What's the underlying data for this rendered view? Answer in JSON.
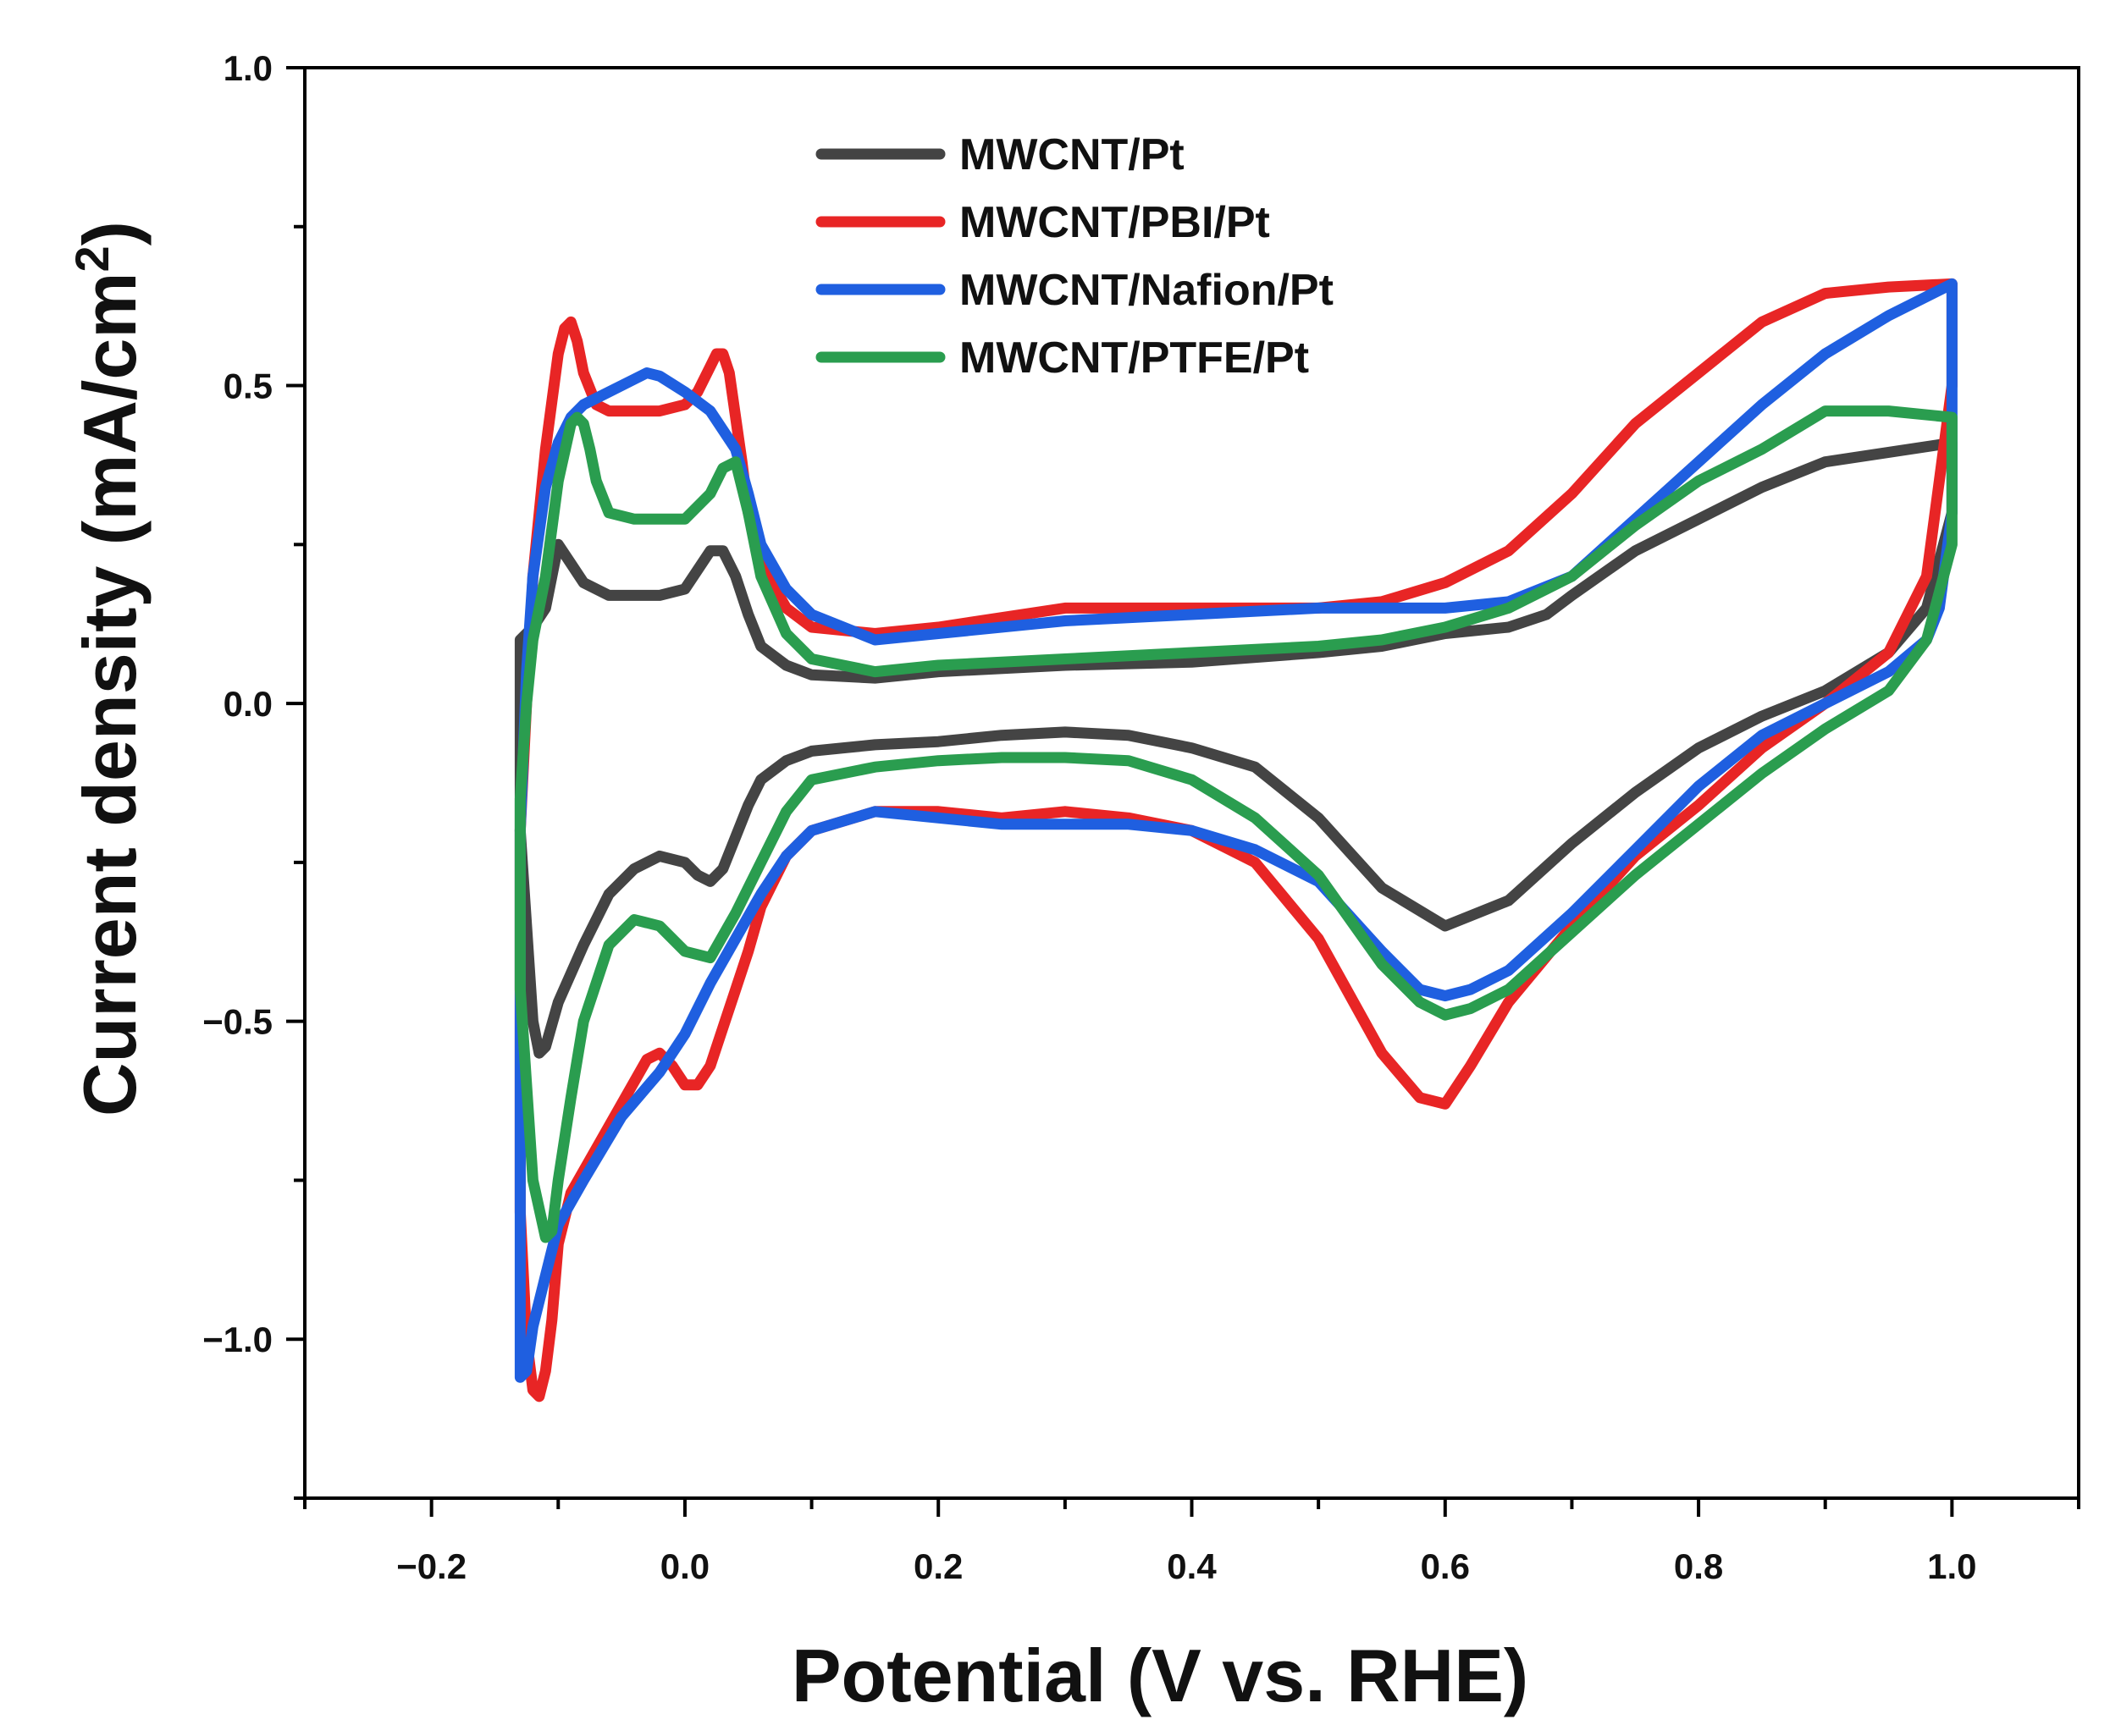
{
  "chart_data": {
    "type": "line",
    "title": "",
    "xlabel": "Potential (V vs. RHE)",
    "ylabel_main": "Current density (mA/cm",
    "ylabel_sup": "2",
    "ylabel_close": ")",
    "xlim": [
      -0.3,
      1.1
    ],
    "ylim": [
      -1.25,
      1.0
    ],
    "x_ticks": [
      -0.2,
      0.0,
      0.2,
      0.4,
      0.6,
      0.8,
      1.0
    ],
    "x_tick_labels": [
      "−0.2",
      "0.0",
      "0.2",
      "0.4",
      "0.6",
      "0.8",
      "1.0"
    ],
    "y_ticks": [
      -1.0,
      -0.5,
      0.0,
      0.5,
      1.0
    ],
    "y_tick_labels": [
      "−1.0",
      "−0.5",
      "0.0",
      "0.5",
      "1.0"
    ],
    "legend_position": "top-center",
    "series": [
      {
        "name": "MWCNT/Pt",
        "color": "#444444",
        "x": [
          -0.11,
          -0.105,
          -0.1,
          -0.09,
          -0.08,
          -0.06,
          -0.04,
          -0.02,
          0.0,
          0.01,
          0.02,
          0.03,
          0.04,
          0.05,
          0.06,
          0.08,
          0.1,
          0.15,
          0.2,
          0.3,
          0.4,
          0.5,
          0.55,
          0.6,
          0.65,
          0.68,
          0.7,
          0.75,
          0.8,
          0.85,
          0.9,
          0.95,
          1.0,
          1.0,
          0.98,
          0.95,
          0.9,
          0.85,
          0.8,
          0.75,
          0.7,
          0.65,
          0.6,
          0.55,
          0.5,
          0.45,
          0.4,
          0.35,
          0.3,
          0.25,
          0.2,
          0.15,
          0.1,
          0.08,
          0.06,
          0.05,
          0.04,
          0.03,
          0.02,
          0.01,
          0.0,
          -0.02,
          -0.04,
          -0.06,
          -0.08,
          -0.1,
          -0.11,
          -0.115,
          -0.12,
          -0.125,
          -0.13,
          -0.13,
          -0.13,
          -0.13,
          -0.12,
          -0.11
        ],
        "y": [
          0.15,
          0.2,
          0.25,
          0.22,
          0.19,
          0.17,
          0.17,
          0.17,
          0.18,
          0.21,
          0.24,
          0.24,
          0.2,
          0.14,
          0.09,
          0.06,
          0.045,
          0.04,
          0.05,
          0.06,
          0.065,
          0.08,
          0.09,
          0.11,
          0.12,
          0.14,
          0.17,
          0.24,
          0.29,
          0.34,
          0.38,
          0.395,
          0.41,
          0.3,
          0.15,
          0.08,
          0.02,
          -0.02,
          -0.07,
          -0.14,
          -0.22,
          -0.31,
          -0.35,
          -0.29,
          -0.18,
          -0.1,
          -0.07,
          -0.05,
          -0.045,
          -0.05,
          -0.06,
          -0.065,
          -0.075,
          -0.09,
          -0.12,
          -0.16,
          -0.21,
          -0.26,
          -0.28,
          -0.27,
          -0.25,
          -0.24,
          -0.26,
          -0.3,
          -0.38,
          -0.47,
          -0.54,
          -0.55,
          -0.5,
          -0.35,
          -0.2,
          -0.05,
          0.05,
          0.1,
          0.12,
          0.15
        ]
      },
      {
        "name": "MWCNT/PBI/Pt",
        "color": "#e82525",
        "x": [
          -0.12,
          -0.11,
          -0.1,
          -0.095,
          -0.09,
          -0.085,
          -0.08,
          -0.07,
          -0.06,
          -0.04,
          -0.02,
          0.0,
          0.01,
          0.02,
          0.025,
          0.03,
          0.035,
          0.04,
          0.045,
          0.05,
          0.06,
          0.08,
          0.1,
          0.15,
          0.2,
          0.3,
          0.4,
          0.5,
          0.55,
          0.6,
          0.65,
          0.7,
          0.75,
          0.8,
          0.85,
          0.9,
          0.95,
          1.0,
          1.0,
          0.98,
          0.95,
          0.9,
          0.85,
          0.8,
          0.75,
          0.7,
          0.65,
          0.62,
          0.6,
          0.58,
          0.55,
          0.5,
          0.45,
          0.4,
          0.35,
          0.3,
          0.25,
          0.2,
          0.15,
          0.1,
          0.08,
          0.06,
          0.05,
          0.04,
          0.03,
          0.02,
          0.01,
          0.0,
          -0.01,
          -0.02,
          -0.03,
          -0.05,
          -0.07,
          -0.09,
          -0.1,
          -0.105,
          -0.11,
          -0.115,
          -0.12,
          -0.125,
          -0.13,
          -0.13,
          -0.13,
          -0.125,
          -0.12
        ],
        "y": [
          0.2,
          0.4,
          0.55,
          0.59,
          0.6,
          0.57,
          0.52,
          0.47,
          0.46,
          0.46,
          0.46,
          0.47,
          0.49,
          0.53,
          0.55,
          0.55,
          0.52,
          0.45,
          0.38,
          0.3,
          0.22,
          0.15,
          0.12,
          0.11,
          0.12,
          0.15,
          0.15,
          0.15,
          0.16,
          0.19,
          0.24,
          0.33,
          0.44,
          0.52,
          0.6,
          0.645,
          0.655,
          0.66,
          0.5,
          0.2,
          0.08,
          0.0,
          -0.07,
          -0.16,
          -0.24,
          -0.35,
          -0.47,
          -0.57,
          -0.63,
          -0.62,
          -0.55,
          -0.37,
          -0.25,
          -0.2,
          -0.18,
          -0.17,
          -0.18,
          -0.17,
          -0.17,
          -0.2,
          -0.24,
          -0.32,
          -0.39,
          -0.45,
          -0.51,
          -0.57,
          -0.6,
          -0.6,
          -0.57,
          -0.55,
          -0.56,
          -0.63,
          -0.7,
          -0.77,
          -0.85,
          -0.97,
          -1.05,
          -1.09,
          -1.08,
          -1.0,
          -0.8,
          -0.5,
          -0.2,
          0.0,
          0.2
        ]
      },
      {
        "name": "MWCNT/Nafion/Pt",
        "color": "#1f5fe0",
        "x": [
          -0.12,
          -0.11,
          -0.1,
          -0.09,
          -0.08,
          -0.06,
          -0.04,
          -0.03,
          -0.02,
          0.0,
          0.02,
          0.04,
          0.05,
          0.06,
          0.08,
          0.1,
          0.15,
          0.2,
          0.3,
          0.4,
          0.5,
          0.6,
          0.65,
          0.7,
          0.75,
          0.8,
          0.85,
          0.9,
          0.95,
          1.0,
          1.0,
          0.99,
          0.98,
          0.95,
          0.9,
          0.85,
          0.8,
          0.75,
          0.7,
          0.65,
          0.62,
          0.6,
          0.58,
          0.55,
          0.5,
          0.45,
          0.4,
          0.35,
          0.3,
          0.25,
          0.2,
          0.15,
          0.1,
          0.08,
          0.06,
          0.04,
          0.02,
          0.0,
          -0.02,
          -0.05,
          -0.08,
          -0.1,
          -0.11,
          -0.12,
          -0.125,
          -0.13,
          -0.13,
          -0.13,
          -0.125,
          -0.12
        ],
        "y": [
          0.2,
          0.34,
          0.41,
          0.45,
          0.47,
          0.49,
          0.51,
          0.52,
          0.515,
          0.49,
          0.46,
          0.4,
          0.33,
          0.25,
          0.18,
          0.14,
          0.1,
          0.11,
          0.13,
          0.14,
          0.15,
          0.15,
          0.16,
          0.2,
          0.29,
          0.38,
          0.47,
          0.55,
          0.61,
          0.66,
          0.3,
          0.15,
          0.1,
          0.05,
          0.0,
          -0.05,
          -0.13,
          -0.23,
          -0.33,
          -0.42,
          -0.45,
          -0.46,
          -0.45,
          -0.39,
          -0.28,
          -0.23,
          -0.2,
          -0.19,
          -0.19,
          -0.19,
          -0.18,
          -0.17,
          -0.2,
          -0.24,
          -0.3,
          -0.37,
          -0.44,
          -0.52,
          -0.58,
          -0.65,
          -0.75,
          -0.82,
          -0.9,
          -0.98,
          -1.05,
          -1.06,
          -0.7,
          -0.2,
          0.05,
          0.2
        ]
      },
      {
        "name": "MWCNT/PTFE/Pt",
        "color": "#2a9d4f",
        "x": [
          -0.11,
          -0.1,
          -0.09,
          -0.085,
          -0.08,
          -0.075,
          -0.07,
          -0.06,
          -0.04,
          -0.02,
          0.0,
          0.02,
          0.03,
          0.04,
          0.05,
          0.06,
          0.08,
          0.1,
          0.15,
          0.2,
          0.3,
          0.4,
          0.5,
          0.55,
          0.6,
          0.65,
          0.7,
          0.75,
          0.8,
          0.85,
          0.9,
          0.95,
          1.0,
          1.0,
          0.98,
          0.95,
          0.9,
          0.85,
          0.8,
          0.75,
          0.7,
          0.65,
          0.62,
          0.6,
          0.58,
          0.55,
          0.5,
          0.45,
          0.4,
          0.35,
          0.3,
          0.25,
          0.2,
          0.15,
          0.1,
          0.08,
          0.06,
          0.04,
          0.02,
          0.0,
          -0.02,
          -0.04,
          -0.06,
          -0.08,
          -0.09,
          -0.1,
          -0.105,
          -0.11,
          -0.12,
          -0.13,
          -0.13,
          -0.125,
          -0.12,
          -0.11
        ],
        "y": [
          0.2,
          0.35,
          0.44,
          0.45,
          0.44,
          0.4,
          0.35,
          0.3,
          0.29,
          0.29,
          0.29,
          0.33,
          0.37,
          0.38,
          0.3,
          0.2,
          0.11,
          0.07,
          0.05,
          0.06,
          0.07,
          0.08,
          0.09,
          0.1,
          0.12,
          0.15,
          0.2,
          0.28,
          0.35,
          0.4,
          0.46,
          0.46,
          0.45,
          0.25,
          0.1,
          0.02,
          -0.04,
          -0.11,
          -0.19,
          -0.27,
          -0.36,
          -0.45,
          -0.48,
          -0.49,
          -0.47,
          -0.41,
          -0.27,
          -0.18,
          -0.12,
          -0.09,
          -0.085,
          -0.085,
          -0.09,
          -0.1,
          -0.12,
          -0.17,
          -0.25,
          -0.33,
          -0.4,
          -0.39,
          -0.35,
          -0.34,
          -0.38,
          -0.5,
          -0.62,
          -0.75,
          -0.83,
          -0.84,
          -0.75,
          -0.45,
          -0.15,
          0.0,
          0.1,
          0.2
        ]
      }
    ]
  }
}
